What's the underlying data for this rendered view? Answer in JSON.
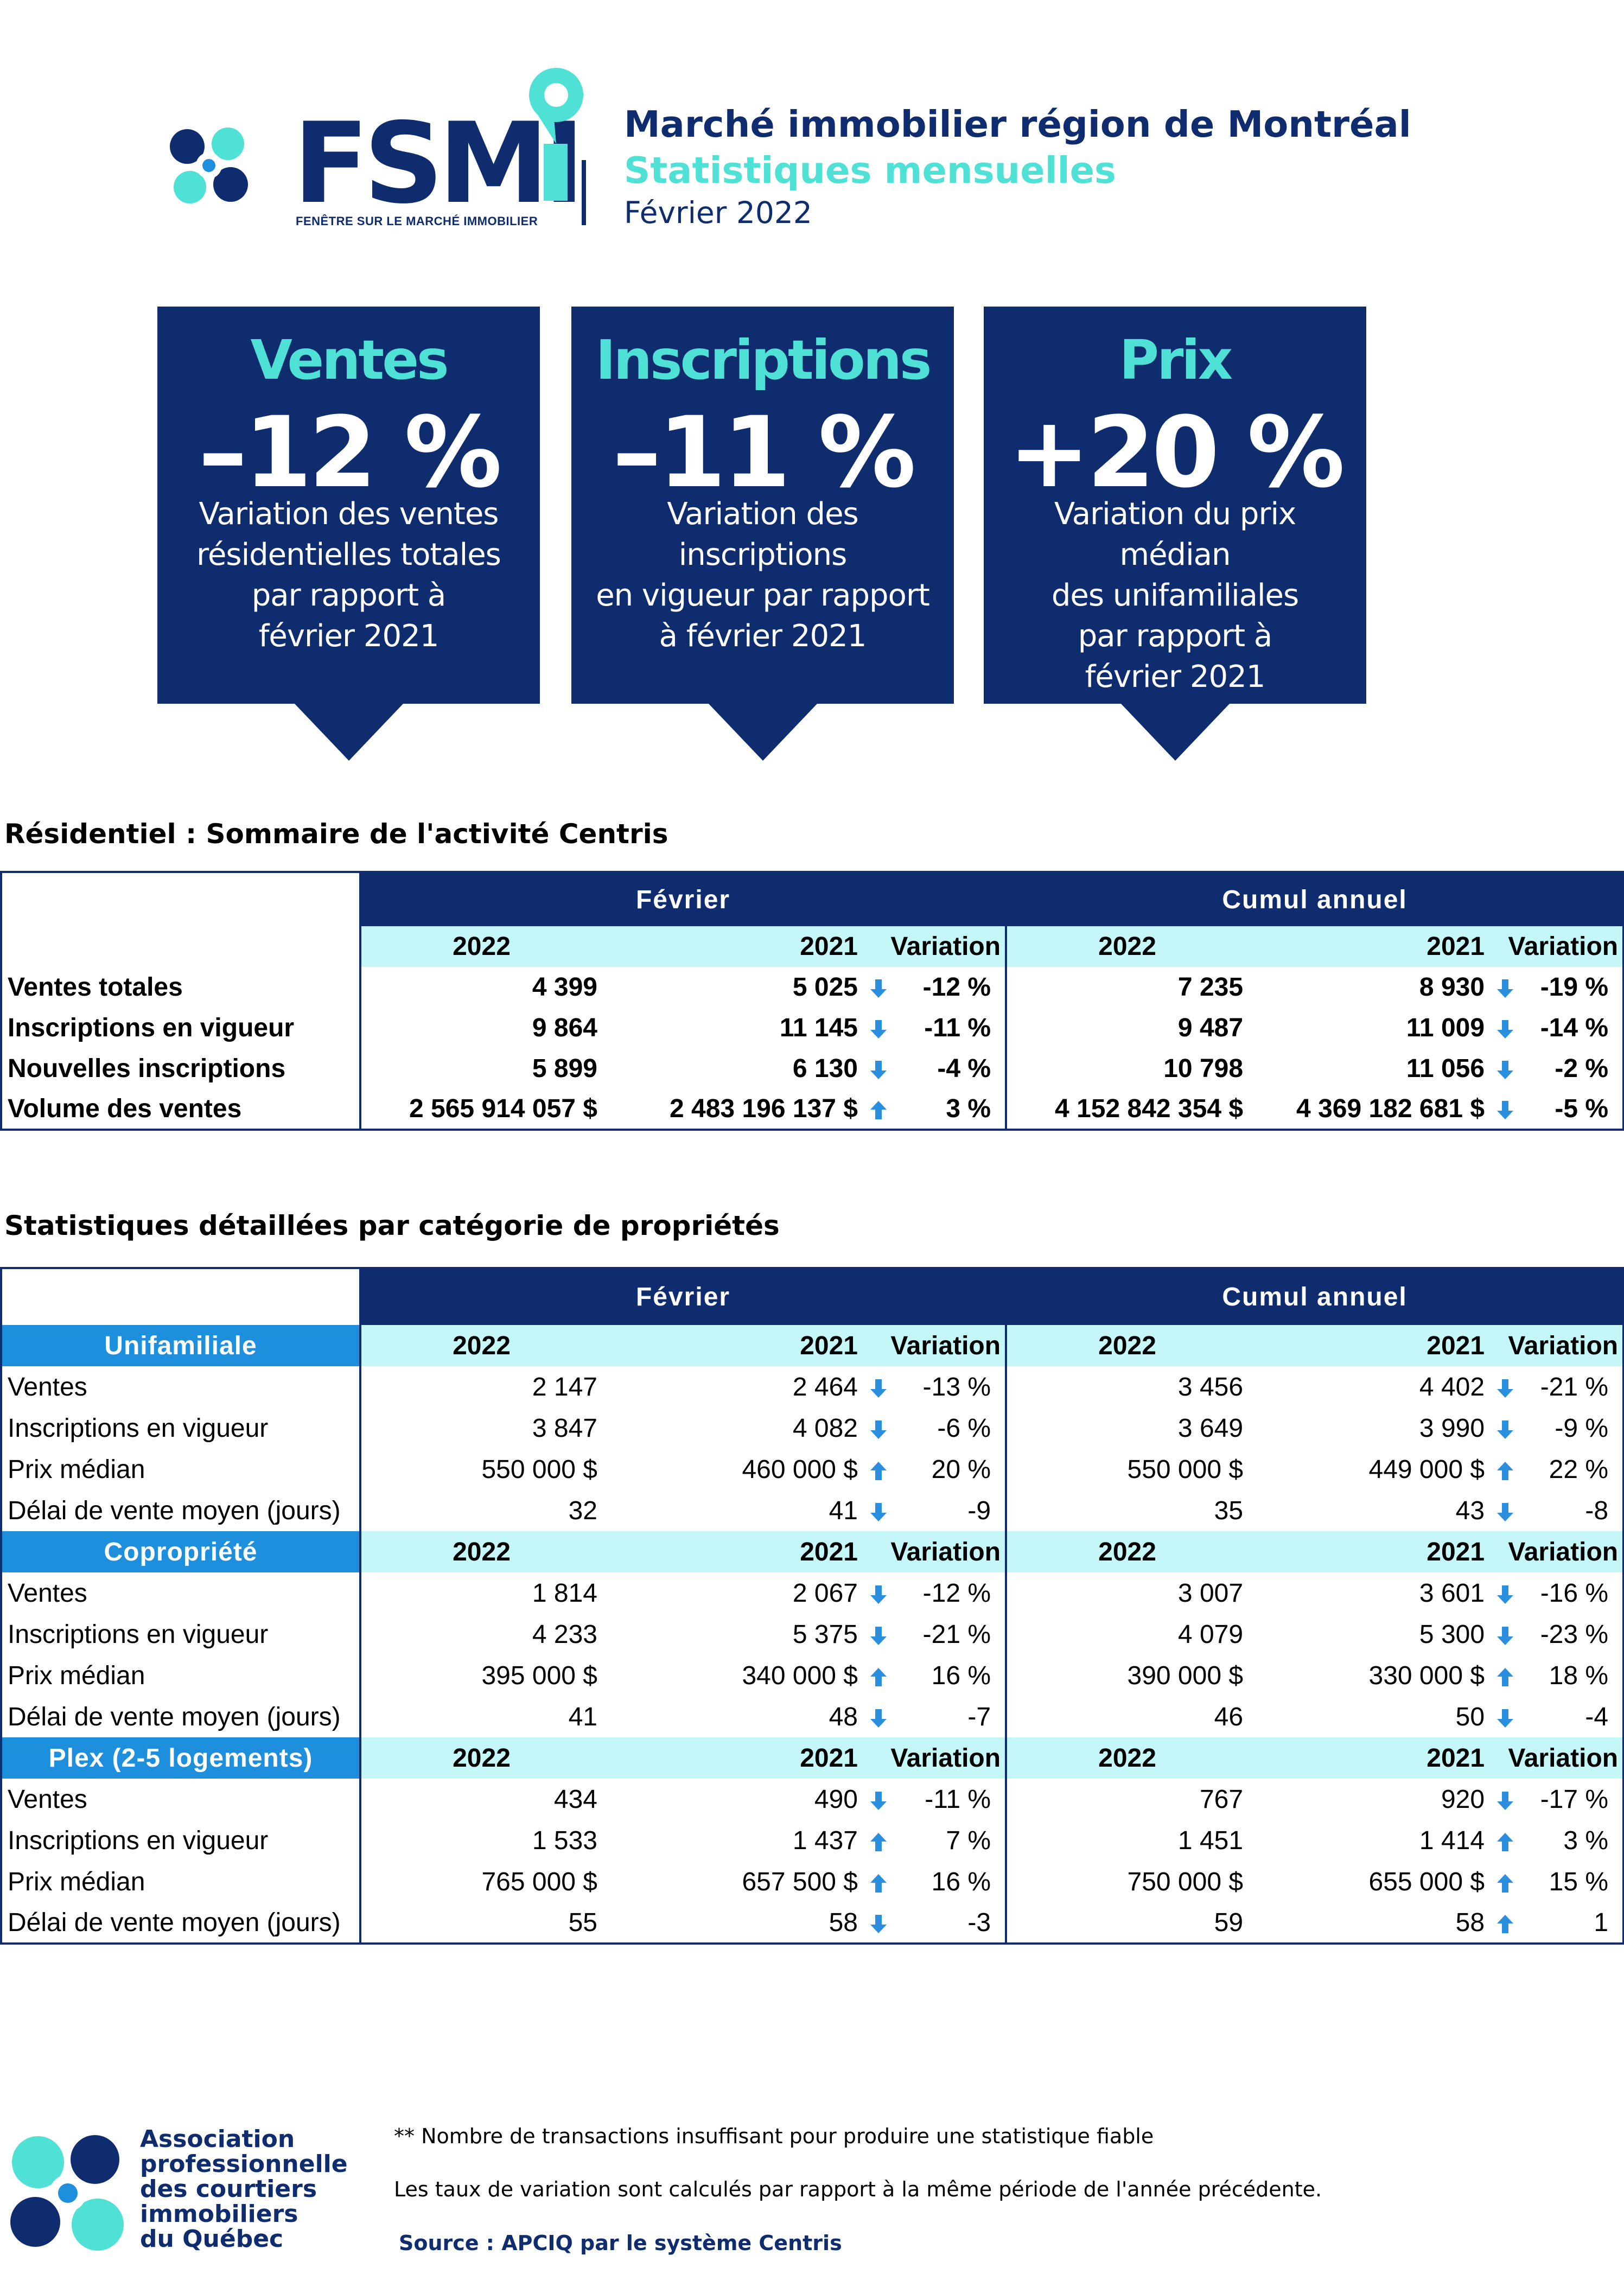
{
  "header": {
    "brand_word": "FSMI",
    "brand_tagline": "FENÊTRE SUR LE MARCHÉ IMMOBILIER",
    "title": "Marché immobilier région de Montréal",
    "subtitle": "Statistiques mensuelles",
    "period": "Février 2022"
  },
  "colors": {
    "navy": "#0f2c6e",
    "aqua": "#4fe0d6",
    "light_aqua": "#c6f7f8",
    "category_blue": "#1e8fdc",
    "arrow_blue": "#2b8fe0"
  },
  "kpis": [
    {
      "title": "Ventes",
      "value": "–12 %",
      "desc": "Variation des ventes\nrésidentielles totales\npar rapport à\nfévrier 2021"
    },
    {
      "title": "Inscriptions",
      "value": "–11 %",
      "desc": "Variation des inscriptions\nen vigueur par rapport\nà février 2021"
    },
    {
      "title": "Prix",
      "value": "+20 %",
      "desc": "Variation du prix médian\ndes unifamiliales\npar rapport à\nfévrier 2021"
    }
  ],
  "summary": {
    "section_title": "Résidentiel : Sommaire de l'activité Centris",
    "group_feb": "Février",
    "group_cum": "Cumul annuel",
    "col_2022": "2022",
    "col_2021": "2021",
    "col_var": "Variation",
    "rows": [
      {
        "label": "Ventes totales",
        "f22": "4 399",
        "f21": "5 025",
        "fdir": "down",
        "fvar": "-12 %",
        "c22": "7 235",
        "c21": "8 930",
        "cdir": "down",
        "cvar": "-19 %"
      },
      {
        "label": "Inscriptions en vigueur",
        "f22": "9 864",
        "f21": "11 145",
        "fdir": "down",
        "fvar": "-11 %",
        "c22": "9 487",
        "c21": "11 009",
        "cdir": "down",
        "cvar": "-14 %"
      },
      {
        "label": "Nouvelles inscriptions",
        "f22": "5 899",
        "f21": "6 130",
        "fdir": "down",
        "fvar": "-4 %",
        "c22": "10 798",
        "c21": "11 056",
        "cdir": "down",
        "cvar": "-2 %"
      },
      {
        "label": "Volume des ventes",
        "f22": "2 565 914 057  $",
        "f21": "2 483 196 137  $",
        "fdir": "up",
        "fvar": "3 %",
        "c22": "4 152 842 354  $",
        "c21": "4 369 182 681  $",
        "cdir": "down",
        "cvar": "-5 %"
      }
    ]
  },
  "detail": {
    "section_title": "Statistiques détaillées par catégorie de propriétés",
    "group_feb": "Février",
    "group_cum": "Cumul annuel",
    "col_2022": "2022",
    "col_2021": "2021",
    "col_var": "Variation",
    "categories": [
      {
        "name": "Unifamiliale",
        "rows": [
          {
            "label": "Ventes",
            "f22": "2 147",
            "f21": "2 464",
            "fdir": "down",
            "fvar": "-13 %",
            "c22": "3 456",
            "c21": "4 402",
            "cdir": "down",
            "cvar": "-21 %"
          },
          {
            "label": "Inscriptions en vigueur",
            "f22": "3 847",
            "f21": "4 082",
            "fdir": "down",
            "fvar": "-6 %",
            "c22": "3 649",
            "c21": "3 990",
            "cdir": "down",
            "cvar": "-9 %"
          },
          {
            "label": "Prix médian",
            "f22": "550 000 $",
            "f21": "460 000 $",
            "fdir": "up",
            "fvar": "20 %",
            "c22": "550 000 $",
            "c21": "449 000 $",
            "cdir": "up",
            "cvar": "22 %"
          },
          {
            "label": "Délai de vente moyen (jours)",
            "f22": "32",
            "f21": "41",
            "fdir": "down",
            "fvar": "-9",
            "c22": "35",
            "c21": "43",
            "cdir": "down",
            "cvar": "-8"
          }
        ]
      },
      {
        "name": "Copropriété",
        "rows": [
          {
            "label": "Ventes",
            "f22": "1 814",
            "f21": "2 067",
            "fdir": "down",
            "fvar": "-12 %",
            "c22": "3 007",
            "c21": "3 601",
            "cdir": "down",
            "cvar": "-16 %"
          },
          {
            "label": "Inscriptions en vigueur",
            "f22": "4 233",
            "f21": "5 375",
            "fdir": "down",
            "fvar": "-21 %",
            "c22": "4 079",
            "c21": "5 300",
            "cdir": "down",
            "cvar": "-23 %"
          },
          {
            "label": "Prix médian",
            "f22": "395 000 $",
            "f21": "340 000 $",
            "fdir": "up",
            "fvar": "16 %",
            "c22": "390 000 $",
            "c21": "330 000 $",
            "cdir": "up",
            "cvar": "18 %"
          },
          {
            "label": "Délai de vente moyen (jours)",
            "f22": "41",
            "f21": "48",
            "fdir": "down",
            "fvar": "-7",
            "c22": "46",
            "c21": "50",
            "cdir": "down",
            "cvar": "-4"
          }
        ]
      },
      {
        "name": "Plex (2-5 logements)",
        "rows": [
          {
            "label": "Ventes",
            "f22": "434",
            "f21": "490",
            "fdir": "down",
            "fvar": "-11 %",
            "c22": "767",
            "c21": "920",
            "cdir": "down",
            "cvar": "-17 %"
          },
          {
            "label": "Inscriptions en vigueur",
            "f22": "1 533",
            "f21": "1 437",
            "fdir": "up",
            "fvar": "7 %",
            "c22": "1 451",
            "c21": "1 414",
            "cdir": "up",
            "cvar": "3 %"
          },
          {
            "label": "Prix médian",
            "f22": "765 000 $",
            "f21": "657 500 $",
            "fdir": "up",
            "fvar": "16 %",
            "c22": "750 000 $",
            "c21": "655 000 $",
            "cdir": "up",
            "cvar": "15 %"
          },
          {
            "label": "Délai de vente moyen (jours)",
            "f22": "55",
            "f21": "58",
            "fdir": "down",
            "fvar": "-3",
            "c22": "59",
            "c21": "58",
            "cdir": "up",
            "cvar": "1"
          }
        ]
      }
    ]
  },
  "footer": {
    "org_name": "Association\nprofessionnelle\ndes courtiers\nimmobiliers\ndu Québec",
    "note_insufficient": "** Nombre de transactions insuffisant pour produire une statistique fiable",
    "note_variation": "Les taux de variation sont calculés par rapport à la même période de l'année précédente.",
    "source": "Source : APCIQ par le système Centris"
  }
}
